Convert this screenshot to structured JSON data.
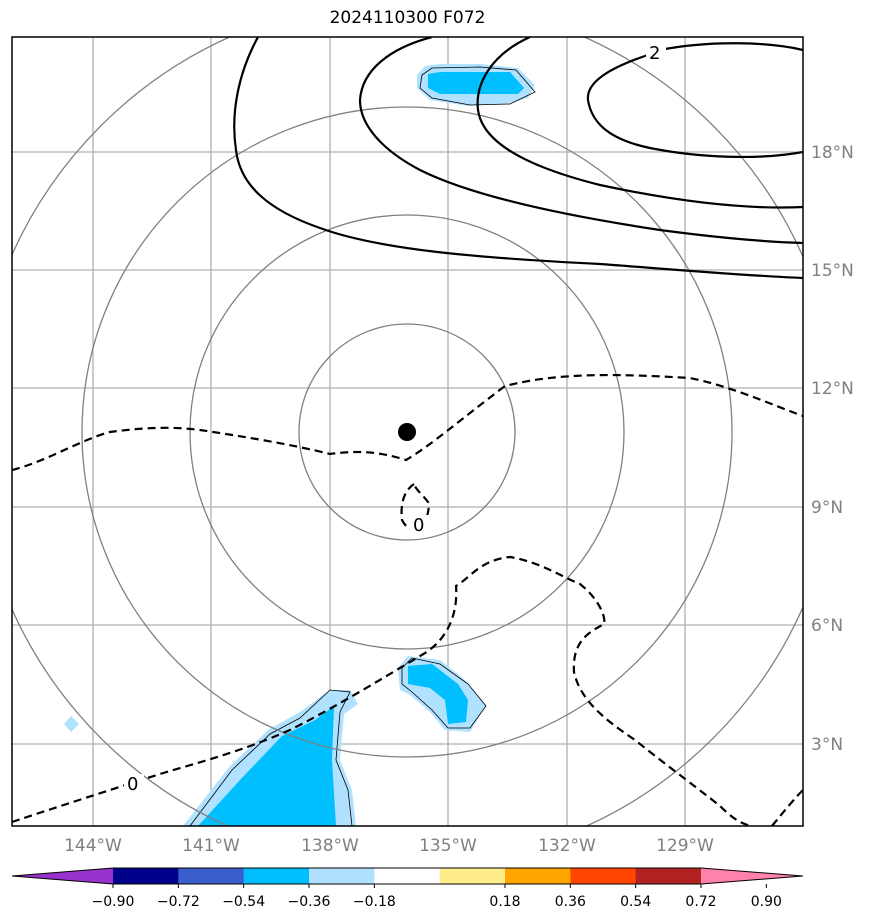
{
  "title": "2024110300 F072",
  "map": {
    "lat_labels": [
      "18°N",
      "15°N",
      "12°N",
      "9°N",
      "6°N",
      "3°N"
    ],
    "lon_labels": [
      "144°W",
      "141°W",
      "138°W",
      "135°W",
      "132°W",
      "129°W"
    ],
    "contour_labels": [
      "2",
      "0",
      "0"
    ],
    "center_marker": {
      "lat": 10.9,
      "lon": "136°W"
    },
    "colors": {
      "positive_contour": "#000000",
      "negative_contour": "#000000",
      "range_rings": "#808080",
      "gridlines": "#b0b0b0"
    }
  },
  "colorbar": {
    "ticks": [
      "−0.90",
      "−0.72",
      "−0.54",
      "−0.36",
      "−0.18",
      "0.18",
      "0.36",
      "0.54",
      "0.72",
      "0.90"
    ],
    "colors": [
      "#9932cc",
      "#00008b",
      "#3a5fcd",
      "#00bfff",
      "#b0e2ff",
      "#ffffff",
      "#ffec8b",
      "#ffa500",
      "#ff4500",
      "#b22222",
      "#ff82ab"
    ]
  }
}
